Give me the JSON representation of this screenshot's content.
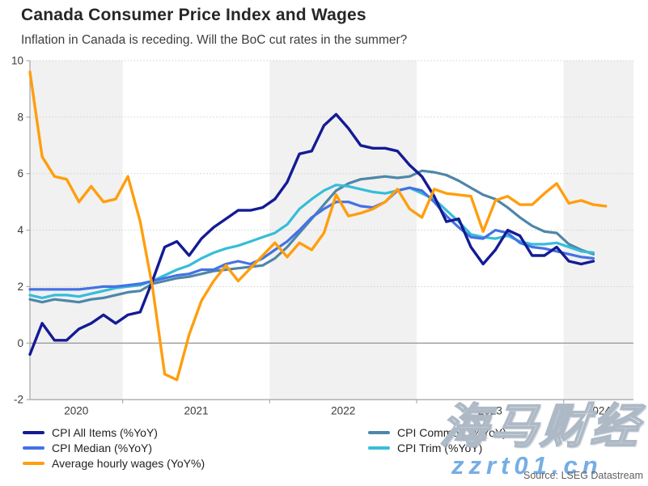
{
  "header": {
    "title": "Canada Consumer Price Index and Wages",
    "subtitle": "Inflation in Canada is receding. Will the BoC cut rates in the summer?"
  },
  "source": "Source: LSEG Datastream",
  "watermark": {
    "cjk_text": "海马财经",
    "url_text": "zzrt01.cn"
  },
  "chart_data": {
    "type": "line",
    "frequency": "monthly",
    "x_start": "2020-05",
    "x_tick_labels": [
      "2020",
      "2021",
      "2022",
      "2023",
      "2024"
    ],
    "y_ticks": [
      10,
      8,
      6,
      4,
      2,
      0,
      -2
    ],
    "ylim": [
      -2,
      10
    ],
    "grid": "horizontal-dotted",
    "year_shading": "alternating-gray-bands",
    "legend_position": "bottom",
    "series": [
      {
        "name": "CPI All Items (%YoY)",
        "color": "#141b94",
        "legend_column": 0,
        "values": [
          -0.4,
          0.7,
          0.1,
          0.1,
          0.5,
          0.7,
          1.0,
          0.7,
          1.0,
          1.1,
          2.2,
          3.4,
          3.6,
          3.1,
          3.7,
          4.1,
          4.4,
          4.7,
          4.7,
          4.8,
          5.1,
          5.7,
          6.7,
          6.8,
          7.7,
          8.1,
          7.6,
          7.0,
          6.9,
          6.9,
          6.8,
          6.3,
          5.9,
          5.2,
          4.3,
          4.4,
          3.4,
          2.8,
          3.3,
          4.0,
          3.8,
          3.1,
          3.1,
          3.4,
          2.9,
          2.8,
          2.9
        ]
      },
      {
        "name": "CPI Median (%YoY)",
        "color": "#4472e4",
        "legend_column": 0,
        "values": [
          1.9,
          1.9,
          1.9,
          1.9,
          1.9,
          1.95,
          2.0,
          2.0,
          2.05,
          2.1,
          2.2,
          2.3,
          2.4,
          2.45,
          2.6,
          2.6,
          2.8,
          2.9,
          2.8,
          3.0,
          3.3,
          3.6,
          4.0,
          4.45,
          4.75,
          5.0,
          5.0,
          4.85,
          4.8,
          5.0,
          5.4,
          5.5,
          5.4,
          5.0,
          4.5,
          4.1,
          3.75,
          3.7,
          4.0,
          3.9,
          3.55,
          3.4,
          3.35,
          3.25,
          3.15,
          3.05,
          3.0
        ]
      },
      {
        "name": "Average hourly wages (YoY%)",
        "color": "#ff9e0e",
        "legend_column": 0,
        "values": [
          9.6,
          6.6,
          5.9,
          5.8,
          5.0,
          5.55,
          5.0,
          5.1,
          5.9,
          4.3,
          2.0,
          -1.1,
          -1.3,
          0.3,
          1.5,
          2.2,
          2.75,
          2.2,
          2.65,
          3.1,
          3.55,
          3.05,
          3.55,
          3.3,
          3.9,
          5.25,
          4.5,
          4.6,
          4.75,
          5.0,
          5.45,
          4.75,
          4.45,
          5.45,
          5.3,
          5.25,
          5.2,
          3.95,
          5.05,
          5.2,
          4.9,
          4.9,
          5.3,
          5.65,
          4.95,
          5.05,
          4.9,
          4.85
        ]
      },
      {
        "name": "CPI Common (%YoY)",
        "color": "#4f86a8",
        "legend_column": 1,
        "values": [
          1.55,
          1.45,
          1.55,
          1.5,
          1.45,
          1.55,
          1.6,
          1.7,
          1.8,
          1.85,
          2.1,
          2.2,
          2.3,
          2.35,
          2.45,
          2.55,
          2.6,
          2.65,
          2.7,
          2.75,
          3.0,
          3.4,
          3.9,
          4.4,
          4.9,
          5.4,
          5.65,
          5.8,
          5.85,
          5.9,
          5.85,
          5.9,
          6.1,
          6.05,
          5.95,
          5.75,
          5.5,
          5.25,
          5.1,
          4.8,
          4.45,
          4.15,
          3.95,
          3.9,
          3.5,
          3.3,
          3.15
        ]
      },
      {
        "name": "CPI Trim (%YoY)",
        "color": "#36bdd8",
        "legend_column": 1,
        "values": [
          1.7,
          1.6,
          1.7,
          1.7,
          1.65,
          1.75,
          1.85,
          1.95,
          2.0,
          2.05,
          2.2,
          2.4,
          2.6,
          2.75,
          3.0,
          3.2,
          3.35,
          3.45,
          3.6,
          3.75,
          3.9,
          4.2,
          4.75,
          5.1,
          5.4,
          5.6,
          5.55,
          5.45,
          5.35,
          5.3,
          5.4,
          5.5,
          5.3,
          5.1,
          4.7,
          4.3,
          3.85,
          3.75,
          3.7,
          3.8,
          3.6,
          3.5,
          3.5,
          3.55,
          3.4,
          3.25,
          3.2
        ]
      }
    ]
  }
}
